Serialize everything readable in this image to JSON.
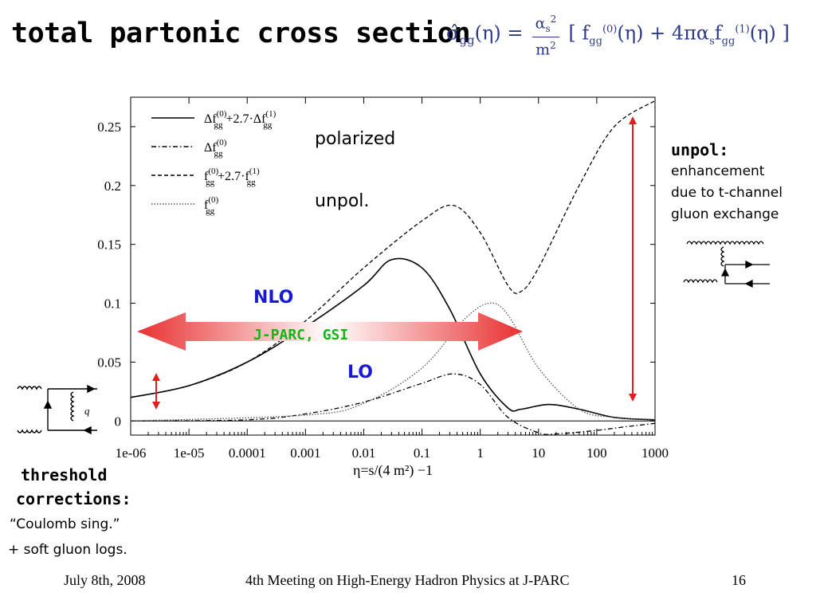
{
  "slide": {
    "title": "total partonic cross section",
    "formula_lhs": "σ̂",
    "formula_sub": "gg",
    "formula_rest": "(η) =",
    "formula_body": "[ f",
    "formula_tail": "(η) + 4πα",
    "formula_end": "(η) ]"
  },
  "annotations": {
    "polarized": "polarized",
    "unpol": "unpol.",
    "nlo": "NLO",
    "lo": "LO",
    "jparc": "J-PARC, GSI",
    "unpol_title": "unpol:",
    "unpol_lines": [
      "enhancement",
      "due to t-channel",
      "gluon exchange"
    ],
    "threshold_1": "threshold",
    "threshold_2": "corrections:",
    "threshold_3": "“Coulomb sing.”",
    "threshold_4": "+ soft gluon logs."
  },
  "footer": {
    "date": "July 8th, 2008",
    "meeting": "4th Meeting on High-Energy Hadron Physics at J-PARC",
    "page": "16"
  },
  "colors": {
    "arrow_red": "#e02020",
    "jparc_green": "#16b416",
    "label_blue": "#1a1ad6",
    "formula_blue": "#2d3a8c"
  },
  "chart_data": {
    "type": "line",
    "xscale": "log",
    "xlabel": "η=s/(4 m²) −1",
    "ylabel": "",
    "xlim": [
      1e-06,
      1000
    ],
    "ylim": [
      -0.012,
      0.275
    ],
    "xticks": [
      "1e-06",
      "1e-05",
      "0.0001",
      "0.001",
      "0.01",
      "0.1",
      "1",
      "10",
      "100",
      "1000"
    ],
    "yticks": [
      "0",
      "0.05",
      "0.1",
      "0.15",
      "0.2",
      "0.25"
    ],
    "legend_position": "top-left",
    "series": [
      {
        "name": "Δf_gg^(0)+2.7·Δf_gg^(1)",
        "style": "solid",
        "points": [
          [
            1e-06,
            0.02
          ],
          [
            1e-05,
            0.03
          ],
          [
            0.0001,
            0.05
          ],
          [
            0.001,
            0.08
          ],
          [
            0.01,
            0.115
          ],
          [
            0.03,
            0.137
          ],
          [
            0.1,
            0.13
          ],
          [
            0.3,
            0.095
          ],
          [
            1,
            0.04
          ],
          [
            3,
            0.011
          ],
          [
            5,
            0.01
          ],
          [
            15,
            0.014
          ],
          [
            50,
            0.01
          ],
          [
            200,
            0.003
          ],
          [
            1000,
            0.001
          ]
        ]
      },
      {
        "name": "Δf_gg^(0)",
        "style": "dashdot",
        "points": [
          [
            1e-06,
            0.0
          ],
          [
            0.0001,
            0.001
          ],
          [
            0.001,
            0.006
          ],
          [
            0.01,
            0.016
          ],
          [
            0.1,
            0.032
          ],
          [
            0.35,
            0.04
          ],
          [
            1,
            0.031
          ],
          [
            3,
            0.003
          ],
          [
            10,
            -0.01
          ],
          [
            20,
            -0.011
          ],
          [
            100,
            -0.008
          ],
          [
            300,
            -0.005
          ],
          [
            1000,
            -0.002
          ]
        ]
      },
      {
        "name": "f_gg^(0)+2.7·f_gg^(1)",
        "style": "dashed",
        "points": [
          [
            1e-06,
            0.02
          ],
          [
            1e-05,
            0.03
          ],
          [
            0.0001,
            0.05
          ],
          [
            0.001,
            0.085
          ],
          [
            0.01,
            0.13
          ],
          [
            0.1,
            0.17
          ],
          [
            0.35,
            0.183
          ],
          [
            1,
            0.16
          ],
          [
            3,
            0.115
          ],
          [
            5,
            0.11
          ],
          [
            10,
            0.13
          ],
          [
            50,
            0.2
          ],
          [
            200,
            0.25
          ],
          [
            1000,
            0.272
          ]
        ]
      },
      {
        "name": "f_gg^(0)",
        "style": "dotted",
        "points": [
          [
            1e-06,
            0.0
          ],
          [
            0.001,
            0.005
          ],
          [
            0.01,
            0.015
          ],
          [
            0.1,
            0.045
          ],
          [
            0.5,
            0.085
          ],
          [
            1.4,
            0.1
          ],
          [
            3,
            0.09
          ],
          [
            10,
            0.045
          ],
          [
            50,
            0.01
          ],
          [
            200,
            0.003
          ],
          [
            1000,
            0.001
          ]
        ]
      }
    ]
  }
}
